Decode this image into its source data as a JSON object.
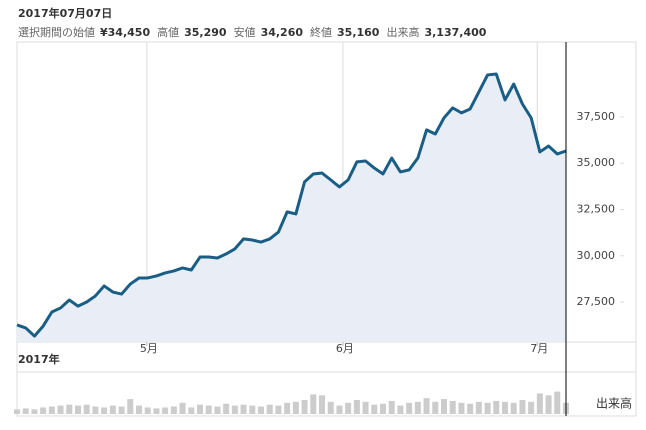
{
  "header": {
    "date": "2017年07月07日",
    "stats": [
      {
        "label": "選択期間の始値",
        "value": "¥34,450"
      },
      {
        "label": "高値",
        "value": "35,290"
      },
      {
        "label": "安値",
        "value": "34,260"
      },
      {
        "label": "終値",
        "value": "35,160"
      },
      {
        "label": "出来高",
        "value": "3,137,400"
      }
    ]
  },
  "chart_data": {
    "type": "line",
    "x": [
      0,
      1,
      2,
      3,
      4,
      5,
      6,
      7,
      8,
      9,
      10,
      11,
      12,
      13,
      14,
      15,
      16,
      17,
      18,
      19,
      20,
      21,
      22,
      23,
      24,
      25,
      26,
      27,
      28,
      29,
      30,
      31,
      32,
      33,
      34,
      35,
      36,
      37,
      38,
      39,
      40,
      41,
      42,
      43,
      44,
      45,
      46,
      47,
      48,
      49,
      50,
      51,
      52,
      53,
      54,
      55,
      56,
      57,
      58,
      59,
      60,
      61,
      62,
      63
    ],
    "values": [
      26260,
      26100,
      25660,
      26200,
      26960,
      27180,
      27610,
      27280,
      27500,
      27830,
      28370,
      28040,
      27930,
      28470,
      28800,
      28800,
      28910,
      29070,
      29180,
      29340,
      29230,
      29930,
      29930,
      29880,
      30100,
      30370,
      30910,
      30850,
      30740,
      30910,
      31280,
      32370,
      32260,
      33990,
      34420,
      34470,
      34100,
      33720,
      34100,
      35070,
      35120,
      34740,
      34420,
      35280,
      34530,
      34640,
      35280,
      36800,
      36580,
      37450,
      37990,
      37720,
      37930,
      38850,
      39770,
      39820,
      38420,
      39280,
      38200,
      37450,
      35610,
      35930,
      35500,
      35660
    ],
    "color": "#1a5e86",
    "fill": "#e9eef6",
    "xlim": [
      0,
      63
    ],
    "xticks": [
      {
        "value": 14.9,
        "label": "5月"
      },
      {
        "value": 37.4,
        "label": "6月"
      },
      {
        "value": 59.7,
        "label": "7月"
      }
    ],
    "xlabel": "2017年",
    "ylim": [
      25340,
      41550
    ],
    "yticks": [
      {
        "value": 27500,
        "label": "27,500"
      },
      {
        "value": 30000,
        "label": "30,000"
      },
      {
        "value": 32500,
        "label": "32,500"
      },
      {
        "value": 35000,
        "label": "35,000"
      },
      {
        "value": 37500,
        "label": "37,500"
      }
    ],
    "cursor_x": 63,
    "volume": {
      "label": "出来高",
      "color": "#cccccc",
      "ylim": [
        0,
        45
      ],
      "values": [
        5,
        6,
        5,
        7,
        8,
        9,
        10,
        9,
        10,
        8,
        7,
        9,
        8,
        16,
        9,
        7,
        6,
        7,
        8,
        12,
        7,
        10,
        9,
        8,
        11,
        9,
        10,
        9,
        8,
        10,
        9,
        12,
        13,
        15,
        21,
        20,
        13,
        9,
        12,
        15,
        13,
        10,
        11,
        14,
        9,
        12,
        13,
        17,
        13,
        16,
        14,
        12,
        11,
        13,
        12,
        14,
        13,
        12,
        15,
        13,
        22,
        20,
        24,
        12
      ]
    }
  }
}
